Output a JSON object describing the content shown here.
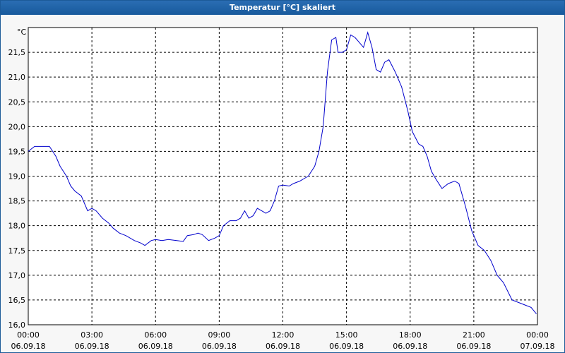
{
  "window": {
    "title": "Temperatur [°C] skaliert"
  },
  "colors": {
    "title_bar": "#1c5fa5",
    "line": "#0000cc",
    "grid": "#000000",
    "background": "#f7f7f7"
  },
  "chart_data": {
    "type": "line",
    "title": "Temperatur [°C] skaliert",
    "unit_label": "°C",
    "xlabel": "",
    "ylabel": "",
    "ylim": [
      16.0,
      22.0
    ],
    "xlim_hours": [
      0,
      24
    ],
    "grid": true,
    "y_ticks": [
      "16,0",
      "16,5",
      "17,0",
      "17,5",
      "18,0",
      "18,5",
      "19,0",
      "19,5",
      "20,0",
      "20,5",
      "21,0",
      "21,5"
    ],
    "x_ticks": [
      {
        "time": "00:00",
        "date": "06.09.18"
      },
      {
        "time": "03:00",
        "date": "06.09.18"
      },
      {
        "time": "06:00",
        "date": "06.09.18"
      },
      {
        "time": "09:00",
        "date": "06.09.18"
      },
      {
        "time": "12:00",
        "date": "06.09.18"
      },
      {
        "time": "15:00",
        "date": "06.09.18"
      },
      {
        "time": "18:00",
        "date": "06.09.18"
      },
      {
        "time": "21:00",
        "date": "06.09.18"
      },
      {
        "time": "00:00",
        "date": "07.09.18"
      }
    ],
    "series": [
      {
        "x_hours": [
          0.0,
          0.3,
          0.5,
          1.0,
          1.3,
          1.5,
          1.8,
          2.0,
          2.2,
          2.5,
          2.8,
          3.0,
          3.2,
          3.5,
          3.8,
          4.0,
          4.3,
          4.6,
          5.0,
          5.3,
          5.5,
          5.8,
          6.0,
          6.3,
          6.6,
          7.0,
          7.3,
          7.5,
          7.8,
          8.0,
          8.2,
          8.5,
          8.8,
          9.0,
          9.2,
          9.5,
          9.8,
          10.0,
          10.2,
          10.4,
          10.6,
          10.8,
          11.0,
          11.2,
          11.4,
          11.6,
          11.8,
          12.0,
          12.3,
          12.5,
          12.8,
          13.0,
          13.2,
          13.5,
          13.7,
          13.9,
          14.1,
          14.3,
          14.5,
          14.6,
          14.8,
          15.0,
          15.2,
          15.4,
          15.6,
          15.8,
          16.0,
          16.2,
          16.4,
          16.6,
          16.8,
          17.0,
          17.3,
          17.6,
          17.9,
          18.1,
          18.4,
          18.6,
          18.8,
          19.0,
          19.2,
          19.5,
          19.8,
          20.1,
          20.3,
          20.6,
          20.9,
          21.2,
          21.5,
          21.8,
          22.1,
          22.4,
          22.8,
          23.1,
          23.4,
          23.7,
          23.95
        ],
        "y": [
          19.5,
          19.6,
          19.6,
          19.6,
          19.4,
          19.2,
          19.0,
          18.8,
          18.7,
          18.6,
          18.3,
          18.35,
          18.3,
          18.15,
          18.05,
          17.95,
          17.85,
          17.8,
          17.7,
          17.65,
          17.6,
          17.7,
          17.72,
          17.7,
          17.72,
          17.7,
          17.68,
          17.8,
          17.82,
          17.85,
          17.82,
          17.7,
          17.75,
          17.8,
          18.0,
          18.1,
          18.1,
          18.15,
          18.3,
          18.15,
          18.2,
          18.35,
          18.3,
          18.25,
          18.3,
          18.5,
          18.8,
          18.82,
          18.8,
          18.85,
          18.9,
          18.95,
          19.0,
          19.2,
          19.5,
          20.0,
          21.1,
          21.75,
          21.8,
          21.5,
          21.5,
          21.55,
          21.85,
          21.8,
          21.7,
          21.6,
          21.9,
          21.6,
          21.15,
          21.1,
          21.3,
          21.35,
          21.1,
          20.8,
          20.3,
          19.9,
          19.65,
          19.6,
          19.4,
          19.1,
          18.95,
          18.75,
          18.85,
          18.9,
          18.85,
          18.4,
          17.9,
          17.6,
          17.5,
          17.3,
          17.0,
          16.85,
          16.5,
          16.45,
          16.4,
          16.35,
          16.22
        ]
      }
    ]
  }
}
